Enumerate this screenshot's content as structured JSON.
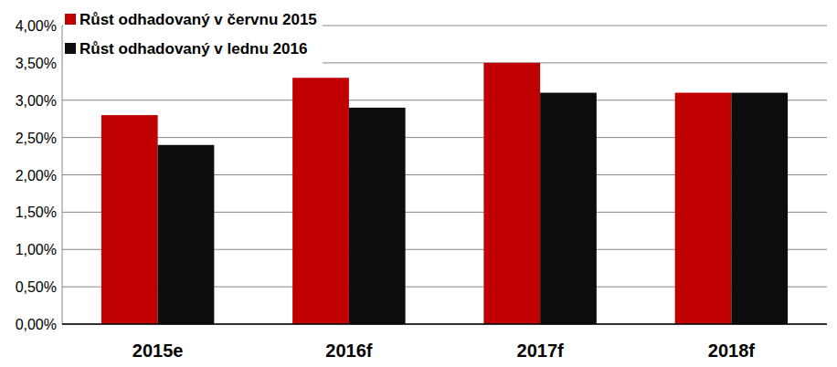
{
  "chart_data": {
    "type": "bar",
    "categories": [
      "2015e",
      "2016f",
      "2017f",
      "2018f"
    ],
    "series": [
      {
        "name": "Růst odhadovaný v červnu 2015",
        "color": "#c00000",
        "values": [
          2.8,
          3.3,
          3.5,
          3.1
        ]
      },
      {
        "name": "Růst odhadovaný v lednu 2016",
        "color": "#0d0d0d",
        "values": [
          2.4,
          2.9,
          3.1,
          3.1
        ]
      }
    ],
    "ylim": [
      0,
      4
    ],
    "yticks": [
      {
        "value": 0,
        "label": "0,00%"
      },
      {
        "value": 0.5,
        "label": "0,50%"
      },
      {
        "value": 1,
        "label": "1,00%"
      },
      {
        "value": 1.5,
        "label": "1,50%"
      },
      {
        "value": 2,
        "label": "2,00%"
      },
      {
        "value": 2.5,
        "label": "2,50%"
      },
      {
        "value": 3,
        "label": "3,00%"
      },
      {
        "value": 3.5,
        "label": "3,50%"
      },
      {
        "value": 4,
        "label": "4,00%"
      }
    ],
    "grid": true,
    "legend": "top-left"
  }
}
